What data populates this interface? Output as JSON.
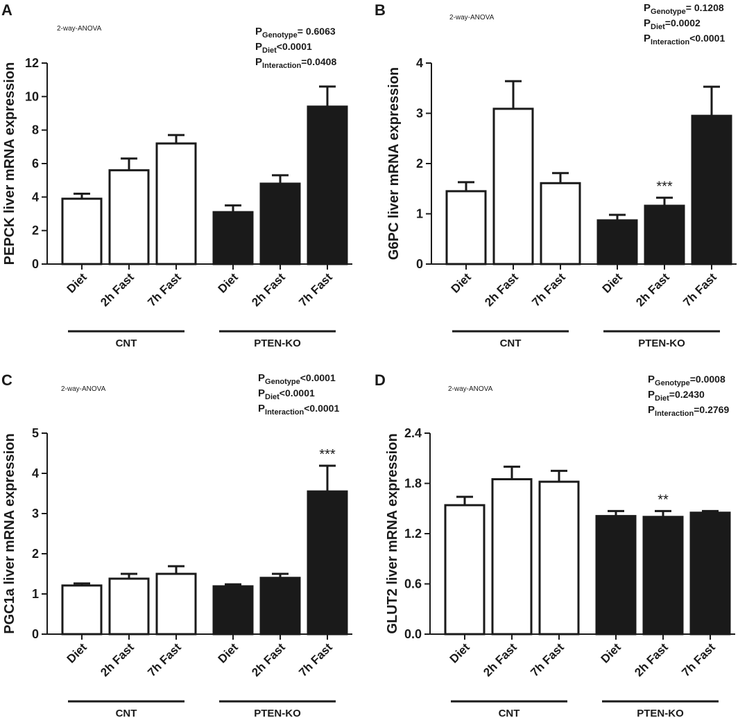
{
  "chart_data": [
    {
      "type": "bar",
      "letter": "A",
      "note": "2-way-ANOVA",
      "ylabel": "PEPCK liver mRNA expression",
      "stats": [
        {
          "label": "P",
          "sub": "Genotype",
          "text": "= 0.6063"
        },
        {
          "label": "P",
          "sub": "Diet",
          "text": "<0.0001"
        },
        {
          "label": "P",
          "sub": "Interaction",
          "text": "=0.0408"
        }
      ],
      "categories": [
        "Diet",
        "2h Fast",
        "7h Fast"
      ],
      "series": [
        {
          "name": "CNT",
          "color": "#ffffff",
          "values": [
            3.9,
            5.6,
            7.2
          ],
          "errors": [
            0.3,
            0.7,
            0.5
          ],
          "stars": [
            null,
            null,
            null
          ]
        },
        {
          "name": "PTEN-KO",
          "color": "#1a1a1a",
          "values": [
            3.1,
            4.8,
            9.4
          ],
          "errors": [
            0.4,
            0.5,
            1.2
          ],
          "stars": [
            null,
            null,
            null
          ]
        }
      ],
      "ylim": [
        0,
        12
      ],
      "yticks": [
        0,
        2,
        4,
        6,
        8,
        10,
        12
      ]
    },
    {
      "type": "bar",
      "letter": "B",
      "note": "2-way-ANOVA",
      "ylabel": "G6PC liver mRNA expression",
      "stats": [
        {
          "label": "P",
          "sub": "Genotype",
          "text": "= 0.1208"
        },
        {
          "label": "P",
          "sub": "Diet",
          "text": "=0.0002"
        },
        {
          "label": "P",
          "sub": "Interaction",
          "text": "<0.0001"
        }
      ],
      "categories": [
        "Diet",
        "2h Fast",
        "7h Fast"
      ],
      "series": [
        {
          "name": "CNT",
          "color": "#ffffff",
          "values": [
            1.45,
            3.09,
            1.61
          ],
          "errors": [
            0.18,
            0.55,
            0.2
          ],
          "stars": [
            null,
            null,
            null
          ]
        },
        {
          "name": "PTEN-KO",
          "color": "#1a1a1a",
          "values": [
            0.87,
            1.16,
            2.95
          ],
          "errors": [
            0.11,
            0.16,
            0.58
          ],
          "stars": [
            null,
            "***",
            null
          ]
        }
      ],
      "ylim": [
        0,
        4
      ],
      "yticks": [
        0,
        1,
        2,
        3,
        4
      ]
    },
    {
      "type": "bar",
      "letter": "C",
      "note": "2-way-ANOVA",
      "ylabel": "PGC1a liver mRNA expression",
      "stats": [
        {
          "label": "P",
          "sub": "Genotype",
          "text": "<0.0001"
        },
        {
          "label": "P",
          "sub": "Diet",
          "text": "<0.0001"
        },
        {
          "label": "P",
          "sub": "Interaction",
          "text": "<0.0001"
        }
      ],
      "categories": [
        "Diet",
        "2h Fast",
        "7h Fast"
      ],
      "series": [
        {
          "name": "CNT",
          "color": "#ffffff",
          "values": [
            1.21,
            1.38,
            1.5
          ],
          "errors": [
            0.05,
            0.12,
            0.19
          ],
          "stars": [
            null,
            null,
            null
          ]
        },
        {
          "name": "PTEN-KO",
          "color": "#1a1a1a",
          "values": [
            1.19,
            1.4,
            3.55
          ],
          "errors": [
            0.05,
            0.1,
            0.64
          ],
          "stars": [
            null,
            null,
            "***"
          ]
        }
      ],
      "ylim": [
        0,
        5
      ],
      "yticks": [
        0,
        1,
        2,
        3,
        4,
        5
      ]
    },
    {
      "type": "bar",
      "letter": "D",
      "note": "2-way-ANOVA",
      "ylabel": "GLUT2 liver mRNA expression",
      "stats": [
        {
          "label": "P",
          "sub": "Genotype",
          "text": "=0.0008"
        },
        {
          "label": "P",
          "sub": "Diet",
          "text": "=0.2430"
        },
        {
          "label": "P",
          "sub": "Interaction",
          "text": "=0.2769"
        }
      ],
      "categories": [
        "Diet",
        "2h Fast",
        "7h Fast"
      ],
      "series": [
        {
          "name": "CNT",
          "color": "#ffffff",
          "values": [
            1.54,
            1.85,
            1.82
          ],
          "errors": [
            0.1,
            0.15,
            0.13
          ],
          "stars": [
            null,
            null,
            null
          ]
        },
        {
          "name": "PTEN-KO",
          "color": "#1a1a1a",
          "values": [
            1.41,
            1.4,
            1.45
          ],
          "errors": [
            0.06,
            0.07,
            0.02
          ],
          "stars": [
            null,
            "**",
            null
          ]
        }
      ],
      "ylim": [
        0,
        2.4
      ],
      "yticks": [
        {
          "value": 0,
          "label": "0.0"
        },
        0.6,
        1.2,
        1.8,
        2.4
      ]
    }
  ]
}
